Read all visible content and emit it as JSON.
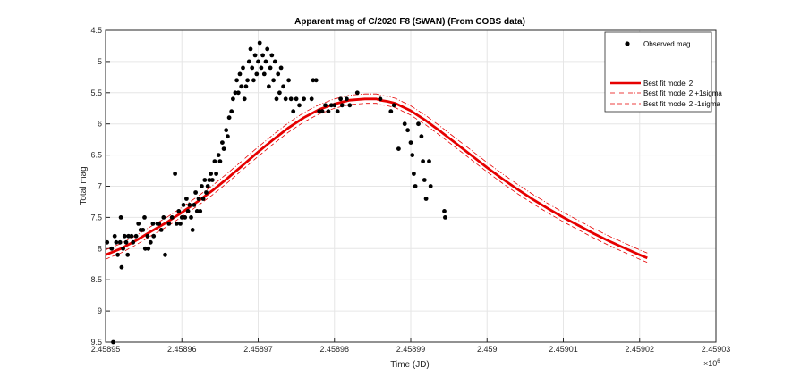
{
  "chart_data": {
    "type": "scatter",
    "title": "Apparent mag of C/2020 F8 (SWAN) (From COBS data)",
    "xlabel": "Time (JD)",
    "ylabel": "Total mag",
    "x_exponent_label": "×10",
    "x_exponent_power": "6",
    "xlim": [
      2458950,
      2459030
    ],
    "ylim": [
      4.5,
      9.5
    ],
    "y_reversed": true,
    "grid": true,
    "legend_position": "top-right",
    "xticks": [
      2458950,
      2458960,
      2458970,
      2458980,
      2458990,
      2459000,
      2459010,
      2459020,
      2459030
    ],
    "xtick_labels": [
      "2.45895",
      "2.45896",
      "2.45897",
      "2.45898",
      "2.45899",
      "2.459",
      "2.45901",
      "2.45902",
      "2.45903"
    ],
    "yticks": [
      4.5,
      5,
      5.5,
      6,
      6.5,
      7,
      7.5,
      8,
      8.5,
      9,
      9.5
    ],
    "ytick_labels": [
      "4.5",
      "5",
      "5.5",
      "6",
      "6.5",
      "7",
      "7.5",
      "8",
      "8.5",
      "9",
      "9.5"
    ],
    "colors": {
      "observed": "#000000",
      "model": "#e60000",
      "grid": "#e6e6e6"
    },
    "series": [
      {
        "name": "Observed mag",
        "style": "dots",
        "points": [
          [
            2458950.2,
            7.9
          ],
          [
            2458950.8,
            8.0
          ],
          [
            2458951.0,
            9.5
          ],
          [
            2458951.2,
            7.8
          ],
          [
            2458951.4,
            7.9
          ],
          [
            2458951.6,
            8.1
          ],
          [
            2458951.9,
            7.9
          ],
          [
            2458952.0,
            7.5
          ],
          [
            2458952.1,
            8.3
          ],
          [
            2458952.3,
            8.0
          ],
          [
            2458952.5,
            7.8
          ],
          [
            2458952.7,
            7.9
          ],
          [
            2458952.9,
            8.1
          ],
          [
            2458953.0,
            7.8
          ],
          [
            2458953.4,
            7.8
          ],
          [
            2458953.6,
            7.9
          ],
          [
            2458954.0,
            7.8
          ],
          [
            2458954.3,
            7.6
          ],
          [
            2458954.6,
            7.7
          ],
          [
            2458954.9,
            7.7
          ],
          [
            2458955.1,
            7.5
          ],
          [
            2458955.2,
            8.0
          ],
          [
            2458955.5,
            7.8
          ],
          [
            2458955.6,
            8.0
          ],
          [
            2458955.9,
            7.9
          ],
          [
            2458956.2,
            7.6
          ],
          [
            2458956.3,
            7.8
          ],
          [
            2458956.8,
            7.6
          ],
          [
            2458957.0,
            7.6
          ],
          [
            2458957.3,
            7.7
          ],
          [
            2458957.6,
            7.5
          ],
          [
            2458957.8,
            8.1
          ],
          [
            2458958.3,
            7.6
          ],
          [
            2458958.7,
            7.5
          ],
          [
            2458959.1,
            6.8
          ],
          [
            2458959.3,
            7.6
          ],
          [
            2458959.6,
            7.4
          ],
          [
            2458959.8,
            7.6
          ],
          [
            2458960.0,
            7.5
          ],
          [
            2458960.2,
            7.3
          ],
          [
            2458960.4,
            7.5
          ],
          [
            2458960.6,
            7.2
          ],
          [
            2458960.8,
            7.4
          ],
          [
            2458961.0,
            7.3
          ],
          [
            2458961.2,
            7.5
          ],
          [
            2458961.4,
            7.7
          ],
          [
            2458961.6,
            7.3
          ],
          [
            2458961.8,
            7.1
          ],
          [
            2458962.0,
            7.4
          ],
          [
            2458962.2,
            7.2
          ],
          [
            2458962.4,
            7.4
          ],
          [
            2458962.6,
            7.0
          ],
          [
            2458962.8,
            7.2
          ],
          [
            2458963.0,
            6.9
          ],
          [
            2458963.2,
            7.1
          ],
          [
            2458963.4,
            7.0
          ],
          [
            2458963.6,
            6.9
          ],
          [
            2458963.8,
            6.8
          ],
          [
            2458964.0,
            6.9
          ],
          [
            2458964.3,
            6.6
          ],
          [
            2458964.5,
            6.8
          ],
          [
            2458964.8,
            6.5
          ],
          [
            2458965.0,
            6.6
          ],
          [
            2458965.3,
            6.3
          ],
          [
            2458965.5,
            6.4
          ],
          [
            2458965.8,
            6.1
          ],
          [
            2458966.0,
            6.2
          ],
          [
            2458966.2,
            5.9
          ],
          [
            2458966.5,
            5.8
          ],
          [
            2458966.7,
            5.6
          ],
          [
            2458967.0,
            5.5
          ],
          [
            2458967.2,
            5.3
          ],
          [
            2458967.4,
            5.5
          ],
          [
            2458967.6,
            5.2
          ],
          [
            2458967.8,
            5.4
          ],
          [
            2458968.0,
            5.1
          ],
          [
            2458968.2,
            5.6
          ],
          [
            2458968.4,
            5.4
          ],
          [
            2458968.6,
            5.3
          ],
          [
            2458968.8,
            5.0
          ],
          [
            2458969.0,
            4.8
          ],
          [
            2458969.2,
            5.1
          ],
          [
            2458969.4,
            5.3
          ],
          [
            2458969.6,
            4.9
          ],
          [
            2458969.8,
            5.2
          ],
          [
            2458970.0,
            5.0
          ],
          [
            2458970.2,
            4.7
          ],
          [
            2458970.4,
            5.1
          ],
          [
            2458970.6,
            4.9
          ],
          [
            2458970.8,
            5.2
          ],
          [
            2458971.0,
            5.0
          ],
          [
            2458971.2,
            4.8
          ],
          [
            2458971.4,
            5.4
          ],
          [
            2458971.6,
            5.1
          ],
          [
            2458971.8,
            4.9
          ],
          [
            2458972.0,
            5.3
          ],
          [
            2458972.2,
            5.0
          ],
          [
            2458972.4,
            5.6
          ],
          [
            2458972.6,
            5.2
          ],
          [
            2458972.8,
            5.5
          ],
          [
            2458973.0,
            5.1
          ],
          [
            2458973.3,
            5.4
          ],
          [
            2458973.6,
            5.6
          ],
          [
            2458974.0,
            5.3
          ],
          [
            2458974.3,
            5.6
          ],
          [
            2458974.6,
            5.8
          ],
          [
            2458975.0,
            5.6
          ],
          [
            2458975.4,
            5.7
          ],
          [
            2458976.0,
            5.6
          ],
          [
            2458977.0,
            5.6
          ],
          [
            2458977.2,
            5.3
          ],
          [
            2458977.6,
            5.3
          ],
          [
            2458978.0,
            5.8
          ],
          [
            2458978.4,
            5.8
          ],
          [
            2458978.8,
            5.7
          ],
          [
            2458979.2,
            5.8
          ],
          [
            2458979.6,
            5.7
          ],
          [
            2458980.0,
            5.7
          ],
          [
            2458980.4,
            5.8
          ],
          [
            2458980.8,
            5.6
          ],
          [
            2458981.0,
            5.7
          ],
          [
            2458981.6,
            5.6
          ],
          [
            2458982.0,
            5.7
          ],
          [
            2458983.0,
            5.5
          ],
          [
            2458986.0,
            5.6
          ],
          [
            2458987.4,
            5.8
          ],
          [
            2458987.8,
            5.7
          ],
          [
            2458988.4,
            6.4
          ],
          [
            2458989.2,
            6.0
          ],
          [
            2458989.6,
            6.1
          ],
          [
            2458990.0,
            6.3
          ],
          [
            2458990.2,
            6.5
          ],
          [
            2458990.4,
            6.8
          ],
          [
            2458990.6,
            7.0
          ],
          [
            2458991.0,
            6.0
          ],
          [
            2458991.4,
            6.2
          ],
          [
            2458991.6,
            6.6
          ],
          [
            2458991.8,
            6.9
          ],
          [
            2458992.0,
            7.2
          ],
          [
            2458992.4,
            6.6
          ],
          [
            2458992.6,
            7.0
          ],
          [
            2458994.4,
            7.4
          ],
          [
            2458994.5,
            7.5
          ]
        ]
      },
      {
        "name": "Best fit model 2",
        "style": "solid-thick",
        "peak_x": 2458985.5,
        "peak_mag": 5.6,
        "points": [
          [
            2458950.0,
            8.1
          ],
          [
            2458952.0,
            8.0
          ],
          [
            2458954.0,
            7.87
          ],
          [
            2458956.0,
            7.72
          ],
          [
            2458958.0,
            7.58
          ],
          [
            2458960.0,
            7.42
          ],
          [
            2458962.0,
            7.25
          ],
          [
            2458964.0,
            7.07
          ],
          [
            2458966.0,
            6.87
          ],
          [
            2458968.0,
            6.66
          ],
          [
            2458970.0,
            6.45
          ],
          [
            2458972.0,
            6.25
          ],
          [
            2458974.0,
            6.06
          ],
          [
            2458976.0,
            5.9
          ],
          [
            2458978.0,
            5.77
          ],
          [
            2458980.0,
            5.68
          ],
          [
            2458982.0,
            5.62
          ],
          [
            2458984.0,
            5.6
          ],
          [
            2458985.5,
            5.6
          ],
          [
            2458986.0,
            5.62
          ],
          [
            2458987.0,
            5.64
          ],
          [
            2458988.0,
            5.67
          ],
          [
            2458990.0,
            5.79
          ],
          [
            2458992.0,
            5.95
          ],
          [
            2458994.0,
            6.13
          ],
          [
            2458996.0,
            6.32
          ],
          [
            2458998.0,
            6.51
          ],
          [
            2459000.0,
            6.7
          ],
          [
            2459002.0,
            6.88
          ],
          [
            2459004.0,
            7.05
          ],
          [
            2459006.0,
            7.21
          ],
          [
            2459008.0,
            7.36
          ],
          [
            2459010.0,
            7.5
          ],
          [
            2459012.0,
            7.63
          ],
          [
            2459014.0,
            7.76
          ],
          [
            2459016.0,
            7.88
          ],
          [
            2459018.0,
            7.99
          ],
          [
            2459020.0,
            8.1
          ],
          [
            2459021.0,
            8.15
          ]
        ]
      },
      {
        "name": "Best fit model 2 +1sigma",
        "style": "dash-dot",
        "offset_mag": -0.08
      },
      {
        "name": "Best fit model 2 -1sigma",
        "style": "dashed",
        "offset_mag": 0.07
      }
    ]
  }
}
